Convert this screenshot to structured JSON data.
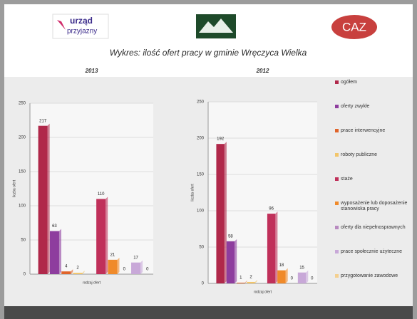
{
  "header": {
    "logo_left": [
      "urząd",
      "przyjazny"
    ],
    "logo_right": "CAZ"
  },
  "title": "Wykres: ilość ofert pracy w gminie Wręczyca Wielka",
  "legend": [
    {
      "name": "ogółem",
      "color": "#b0284a"
    },
    {
      "name": "oferty zwykłe",
      "color": "#8e3d9e"
    },
    {
      "name": "prace interwencyjne",
      "color": "#e0642a"
    },
    {
      "name": "roboty publiczne",
      "color": "#f2c56a"
    },
    {
      "name": "staże",
      "color": "#c0305a"
    },
    {
      "name": "wyposażenie lub doposażenie stanowiska pracy",
      "color": "#f08a2a"
    },
    {
      "name": "oferty dla niepełnosprawnych",
      "color": "#b88ac0"
    },
    {
      "name": "prace społecznie użyteczne",
      "color": "#c8a8d8"
    },
    {
      "name": "przygotowanie zawodowe",
      "color": "#f4d090"
    }
  ],
  "chart_data": [
    {
      "type": "bar",
      "title": "2013",
      "values": [
        217,
        63,
        4,
        2,
        110,
        21,
        0,
        17,
        0
      ],
      "ylim": [
        0,
        250
      ],
      "yticks": [
        0,
        50,
        100,
        150,
        200,
        250
      ],
      "ylabel": "liczba ofert",
      "xlabel": "rodzaj ofert"
    },
    {
      "type": "bar",
      "title": "2012",
      "values": [
        192,
        58,
        1,
        2,
        96,
        18,
        0,
        15,
        0
      ],
      "ylim": [
        0,
        250
      ],
      "yticks": [
        0,
        50,
        100,
        150,
        200,
        250
      ],
      "ylabel": "liczba ofert",
      "xlabel": "rodzaj ofert"
    }
  ]
}
